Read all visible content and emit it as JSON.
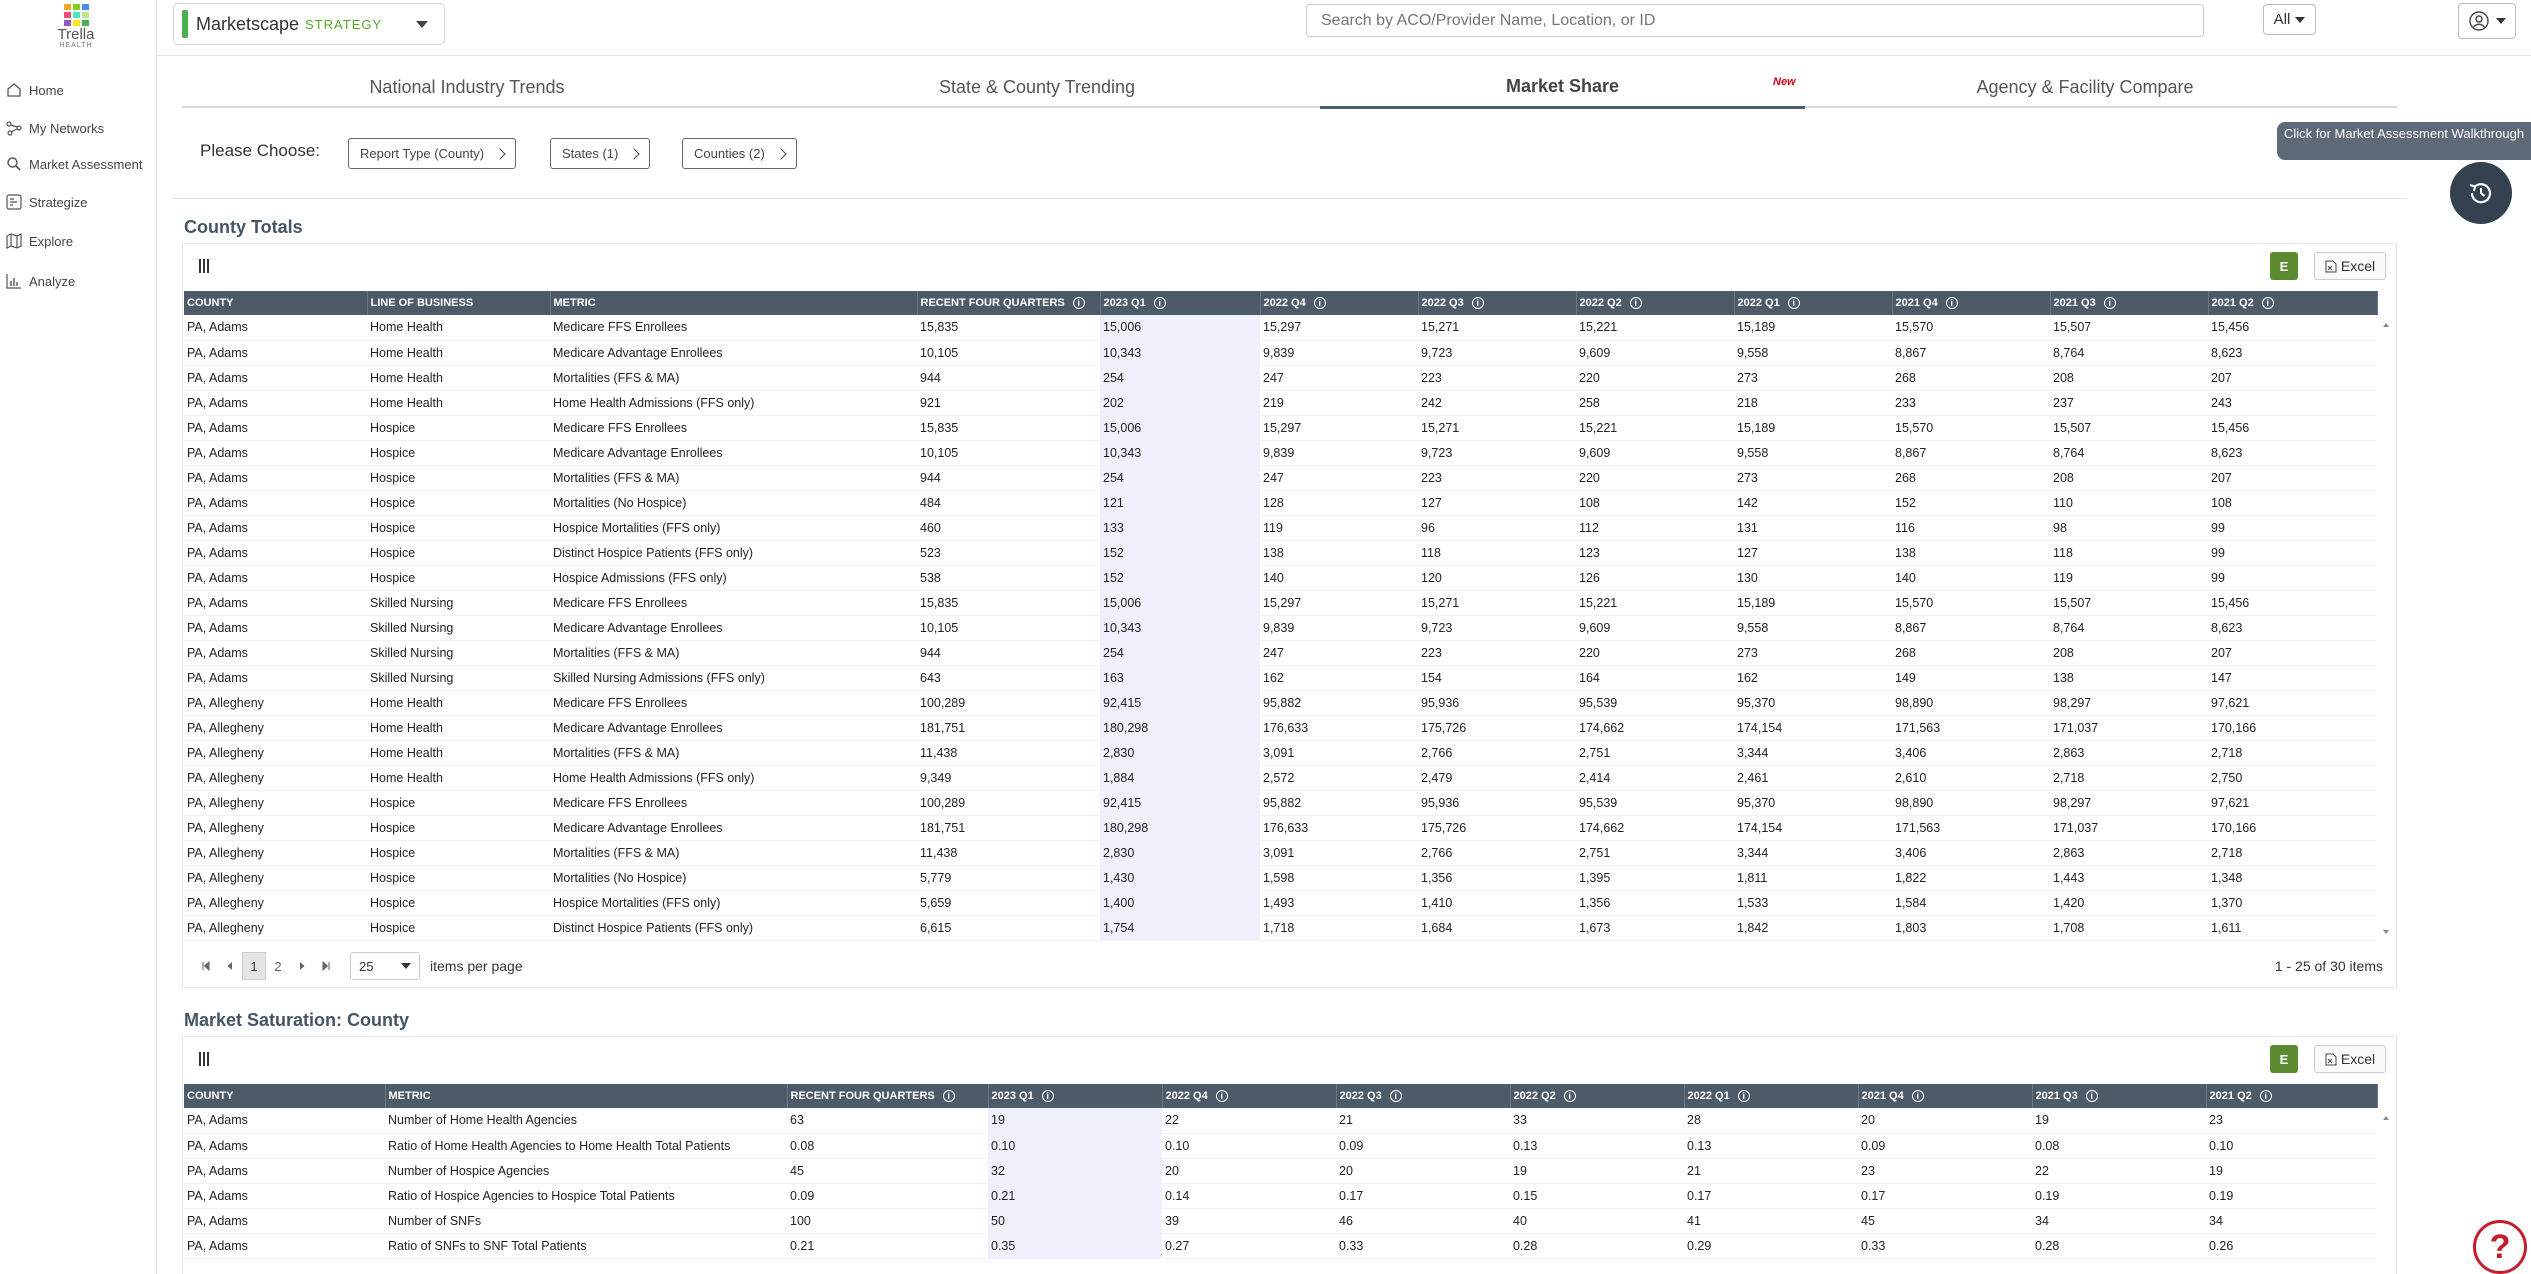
{
  "brand": {
    "name": "Trella",
    "sub": "HEALTH",
    "colors": [
      "#f5a623",
      "#7ed321",
      "#4a90e2",
      "#e94e77",
      "#50e3c2",
      "#b8e986",
      "#9b59b6",
      "#f8e71c",
      "#4caf50"
    ]
  },
  "sidebar": {
    "items": [
      {
        "label": "Home",
        "icon": "home-icon"
      },
      {
        "label": "My Networks",
        "icon": "network-icon"
      },
      {
        "label": "Market Assessment",
        "icon": "search-icon"
      },
      {
        "label": "Strategize",
        "icon": "strategize-icon"
      },
      {
        "label": "Explore",
        "icon": "map-icon"
      },
      {
        "label": "Analyze",
        "icon": "chart-icon"
      }
    ]
  },
  "topbar": {
    "product": "Marketscape",
    "product_tag": "STRATEGY",
    "search_placeholder": "Search by ACO/Provider Name, Location, or ID",
    "filter": "All"
  },
  "tabs": [
    {
      "label": "National Industry Trends"
    },
    {
      "label": "State & County Trending"
    },
    {
      "label": "Market Share",
      "badge": "New"
    },
    {
      "label": "Agency & Facility Compare"
    }
  ],
  "choose": {
    "label": "Please Choose:",
    "chips": [
      "Report Type (County)",
      "States (1)",
      "Counties (2)"
    ]
  },
  "walkthrough": "Click for Market Assessment Walkthrough",
  "county_totals": {
    "title": "County Totals",
    "excel": "Excel",
    "e_label": "E",
    "columns": [
      "COUNTY",
      "LINE OF BUSINESS",
      "METRIC",
      "RECENT FOUR QUARTERS",
      "2023 Q1",
      "2022 Q4",
      "2022 Q3",
      "2022 Q2",
      "2022 Q1",
      "2021 Q4",
      "2021 Q3",
      "2021 Q2"
    ],
    "rows": [
      [
        "PA, Adams",
        "Home Health",
        "Medicare FFS Enrollees",
        "15,835",
        "15,006",
        "15,297",
        "15,271",
        "15,221",
        "15,189",
        "15,570",
        "15,507",
        "15,456"
      ],
      [
        "PA, Adams",
        "Home Health",
        "Medicare Advantage Enrollees",
        "10,105",
        "10,343",
        "9,839",
        "9,723",
        "9,609",
        "9,558",
        "8,867",
        "8,764",
        "8,623"
      ],
      [
        "PA, Adams",
        "Home Health",
        "Mortalities (FFS & MA)",
        "944",
        "254",
        "247",
        "223",
        "220",
        "273",
        "268",
        "208",
        "207"
      ],
      [
        "PA, Adams",
        "Home Health",
        "Home Health Admissions (FFS only)",
        "921",
        "202",
        "219",
        "242",
        "258",
        "218",
        "233",
        "237",
        "243"
      ],
      [
        "PA, Adams",
        "Hospice",
        "Medicare FFS Enrollees",
        "15,835",
        "15,006",
        "15,297",
        "15,271",
        "15,221",
        "15,189",
        "15,570",
        "15,507",
        "15,456"
      ],
      [
        "PA, Adams",
        "Hospice",
        "Medicare Advantage Enrollees",
        "10,105",
        "10,343",
        "9,839",
        "9,723",
        "9,609",
        "9,558",
        "8,867",
        "8,764",
        "8,623"
      ],
      [
        "PA, Adams",
        "Hospice",
        "Mortalities (FFS & MA)",
        "944",
        "254",
        "247",
        "223",
        "220",
        "273",
        "268",
        "208",
        "207"
      ],
      [
        "PA, Adams",
        "Hospice",
        "Mortalities (No Hospice)",
        "484",
        "121",
        "128",
        "127",
        "108",
        "142",
        "152",
        "110",
        "108"
      ],
      [
        "PA, Adams",
        "Hospice",
        "Hospice Mortalities (FFS only)",
        "460",
        "133",
        "119",
        "96",
        "112",
        "131",
        "116",
        "98",
        "99"
      ],
      [
        "PA, Adams",
        "Hospice",
        "Distinct Hospice Patients (FFS only)",
        "523",
        "152",
        "138",
        "118",
        "123",
        "127",
        "138",
        "118",
        "99"
      ],
      [
        "PA, Adams",
        "Hospice",
        "Hospice Admissions (FFS only)",
        "538",
        "152",
        "140",
        "120",
        "126",
        "130",
        "140",
        "119",
        "99"
      ],
      [
        "PA, Adams",
        "Skilled Nursing",
        "Medicare FFS Enrollees",
        "15,835",
        "15,006",
        "15,297",
        "15,271",
        "15,221",
        "15,189",
        "15,570",
        "15,507",
        "15,456"
      ],
      [
        "PA, Adams",
        "Skilled Nursing",
        "Medicare Advantage Enrollees",
        "10,105",
        "10,343",
        "9,839",
        "9,723",
        "9,609",
        "9,558",
        "8,867",
        "8,764",
        "8,623"
      ],
      [
        "PA, Adams",
        "Skilled Nursing",
        "Mortalities (FFS & MA)",
        "944",
        "254",
        "247",
        "223",
        "220",
        "273",
        "268",
        "208",
        "207"
      ],
      [
        "PA, Adams",
        "Skilled Nursing",
        "Skilled Nursing Admissions (FFS only)",
        "643",
        "163",
        "162",
        "154",
        "164",
        "162",
        "149",
        "138",
        "147"
      ],
      [
        "PA, Allegheny",
        "Home Health",
        "Medicare FFS Enrollees",
        "100,289",
        "92,415",
        "95,882",
        "95,936",
        "95,539",
        "95,370",
        "98,890",
        "98,297",
        "97,621"
      ],
      [
        "PA, Allegheny",
        "Home Health",
        "Medicare Advantage Enrollees",
        "181,751",
        "180,298",
        "176,633",
        "175,726",
        "174,662",
        "174,154",
        "171,563",
        "171,037",
        "170,166"
      ],
      [
        "PA, Allegheny",
        "Home Health",
        "Mortalities (FFS & MA)",
        "11,438",
        "2,830",
        "3,091",
        "2,766",
        "2,751",
        "3,344",
        "3,406",
        "2,863",
        "2,718"
      ],
      [
        "PA, Allegheny",
        "Home Health",
        "Home Health Admissions (FFS only)",
        "9,349",
        "1,884",
        "2,572",
        "2,479",
        "2,414",
        "2,461",
        "2,610",
        "2,718",
        "2,750"
      ],
      [
        "PA, Allegheny",
        "Hospice",
        "Medicare FFS Enrollees",
        "100,289",
        "92,415",
        "95,882",
        "95,936",
        "95,539",
        "95,370",
        "98,890",
        "98,297",
        "97,621"
      ],
      [
        "PA, Allegheny",
        "Hospice",
        "Medicare Advantage Enrollees",
        "181,751",
        "180,298",
        "176,633",
        "175,726",
        "174,662",
        "174,154",
        "171,563",
        "171,037",
        "170,166"
      ],
      [
        "PA, Allegheny",
        "Hospice",
        "Mortalities (FFS & MA)",
        "11,438",
        "2,830",
        "3,091",
        "2,766",
        "2,751",
        "3,344",
        "3,406",
        "2,863",
        "2,718"
      ],
      [
        "PA, Allegheny",
        "Hospice",
        "Mortalities (No Hospice)",
        "5,779",
        "1,430",
        "1,598",
        "1,356",
        "1,395",
        "1,811",
        "1,822",
        "1,443",
        "1,348"
      ],
      [
        "PA, Allegheny",
        "Hospice",
        "Hospice Mortalities (FFS only)",
        "5,659",
        "1,400",
        "1,493",
        "1,410",
        "1,356",
        "1,533",
        "1,584",
        "1,420",
        "1,370"
      ],
      [
        "PA, Allegheny",
        "Hospice",
        "Distinct Hospice Patients (FFS only)",
        "6,615",
        "1,754",
        "1,718",
        "1,684",
        "1,673",
        "1,842",
        "1,803",
        "1,708",
        "1,611"
      ]
    ],
    "pager": {
      "pages": [
        "1",
        "2"
      ],
      "per_page": "25",
      "per_page_label": "items per page",
      "summary": "1 - 25 of 30 items"
    }
  },
  "saturation": {
    "title": "Market Saturation: County",
    "excel": "Excel",
    "e_label": "E",
    "columns": [
      "COUNTY",
      "METRIC",
      "RECENT FOUR QUARTERS",
      "2023 Q1",
      "2022 Q4",
      "2022 Q3",
      "2022 Q2",
      "2022 Q1",
      "2021 Q4",
      "2021 Q3",
      "2021 Q2"
    ],
    "rows": [
      [
        "PA, Adams",
        "Number of Home Health Agencies",
        "63",
        "19",
        "22",
        "21",
        "33",
        "28",
        "20",
        "19",
        "23"
      ],
      [
        "PA, Adams",
        "Ratio of Home Health Agencies to Home Health Total Patients",
        "0.08",
        "0.10",
        "0.10",
        "0.09",
        "0.13",
        "0.13",
        "0.09",
        "0.08",
        "0.10"
      ],
      [
        "PA, Adams",
        "Number of Hospice Agencies",
        "45",
        "32",
        "20",
        "20",
        "19",
        "21",
        "23",
        "22",
        "19"
      ],
      [
        "PA, Adams",
        "Ratio of Hospice Agencies to Hospice Total Patients",
        "0.09",
        "0.21",
        "0.14",
        "0.17",
        "0.15",
        "0.17",
        "0.17",
        "0.19",
        "0.19"
      ],
      [
        "PA, Adams",
        "Number of SNFs",
        "100",
        "50",
        "39",
        "46",
        "40",
        "41",
        "45",
        "34",
        "34"
      ],
      [
        "PA, Adams",
        "Ratio of SNFs to SNF Total Patients",
        "0.21",
        "0.35",
        "0.27",
        "0.33",
        "0.28",
        "0.29",
        "0.33",
        "0.28",
        "0.26"
      ]
    ]
  }
}
